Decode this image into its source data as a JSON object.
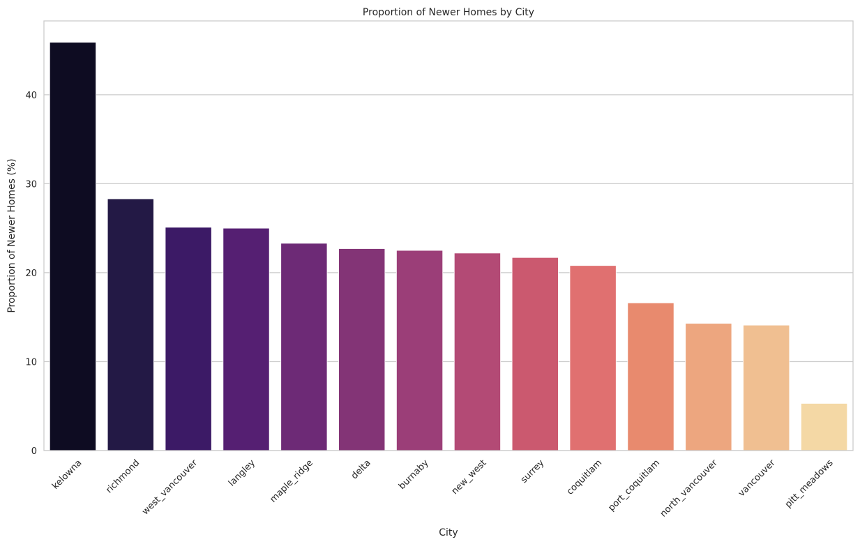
{
  "chart_data": {
    "type": "bar",
    "title": "Proportion of Newer Homes by City",
    "xlabel": "City",
    "ylabel": "Proportion of Newer Homes (%)",
    "ylim": [
      0,
      48.3
    ],
    "yticks": [
      0,
      10,
      20,
      30,
      40
    ],
    "grid": "horizontal",
    "categories": [
      "kelowna",
      "richmond",
      "west_vancouver",
      "langley",
      "maple_ridge",
      "delta",
      "burnaby",
      "new_west",
      "surrey",
      "coquitlam",
      "port_coquitlam",
      "north_vancouver",
      "vancouver",
      "pitt_meadows"
    ],
    "values": [
      45.9,
      28.3,
      25.1,
      25.0,
      23.3,
      22.7,
      22.5,
      22.2,
      21.7,
      20.8,
      16.6,
      14.3,
      14.1,
      5.3
    ],
    "colors": [
      "#0e0c22",
      "#231945",
      "#3c1a66",
      "#551f72",
      "#6d2a76",
      "#833476",
      "#9b3e78",
      "#b34a75",
      "#cb596f",
      "#e07070",
      "#e88a6e",
      "#eda67f",
      "#f0bf91",
      "#f4d8a5"
    ]
  }
}
